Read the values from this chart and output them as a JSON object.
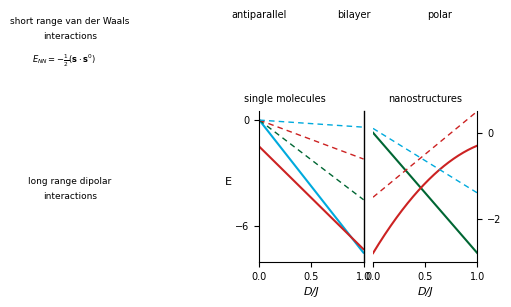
{
  "title": "",
  "xlabel": "D/J",
  "left_ylabel": "E",
  "left_yticks": [
    0,
    -6
  ],
  "right_yticks": [
    0,
    -2
  ],
  "left_ylim": [
    -8,
    0.5
  ],
  "right_ylim": [
    -3,
    0.5
  ],
  "left_xlim": [
    0,
    1.0
  ],
  "right_xlim": [
    0,
    1.0
  ],
  "left_xticks": [
    0,
    0.5,
    1.0
  ],
  "right_xticks": [
    0,
    0.5,
    1.0
  ],
  "colors": {
    "blue": "#00AADD",
    "red": "#CC2222",
    "green": "#006633"
  },
  "background": "#ffffff",
  "text_color": "#000000",
  "vdw_text": "short range van der Waals\ninteractions",
  "dipolar_text": "long range dipolar\ninteractions",
  "antiparallel_label": "antiparallel",
  "bilayer_label": "bilayer",
  "polar_label": "polar",
  "single_mol_label": "single molecules",
  "nanostructures_label": "nanostructures"
}
